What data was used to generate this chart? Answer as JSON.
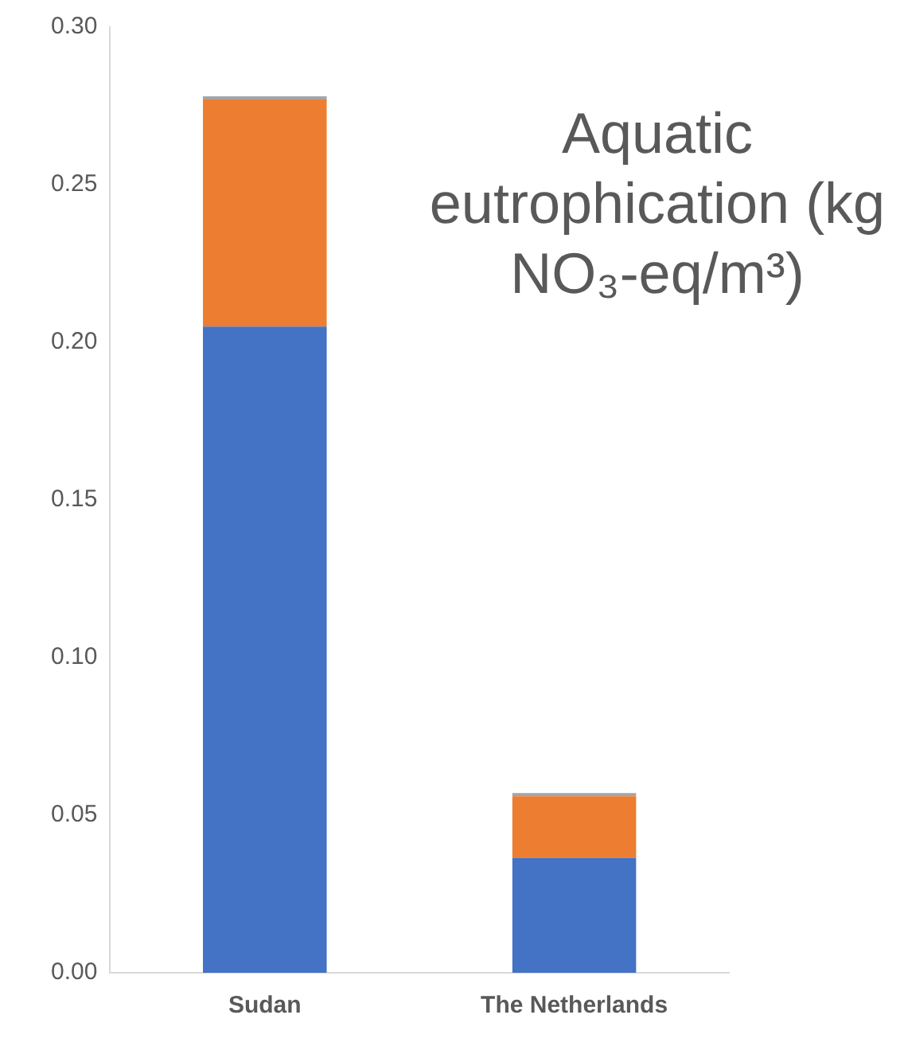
{
  "chart_data": {
    "type": "bar",
    "stacked": true,
    "categories": [
      "Sudan",
      "The Netherlands"
    ],
    "series": [
      {
        "color": "#4472c4",
        "values": [
          0.205,
          0.0365
        ]
      },
      {
        "color": "#ed7d31",
        "values": [
          0.072,
          0.0195
        ]
      },
      {
        "color": "#a5a5a5",
        "values": [
          0.001,
          0.001
        ]
      }
    ],
    "ylim": [
      0,
      0.3
    ],
    "yticks": [
      {
        "value": 0,
        "label": "0.00"
      },
      {
        "value": 0.05,
        "label": "0.05"
      },
      {
        "value": 0.1,
        "label": "0.10"
      },
      {
        "value": 0.15,
        "label": "0.15"
      },
      {
        "value": 0.2,
        "label": "0.20"
      },
      {
        "value": 0.25,
        "label": "0.25"
      },
      {
        "value": 0.3,
        "label": "0.30"
      }
    ],
    "annotations": [
      "Aquatic eutrophication (kg NO₃-eq/m³)"
    ],
    "grid": false,
    "legend": false
  }
}
